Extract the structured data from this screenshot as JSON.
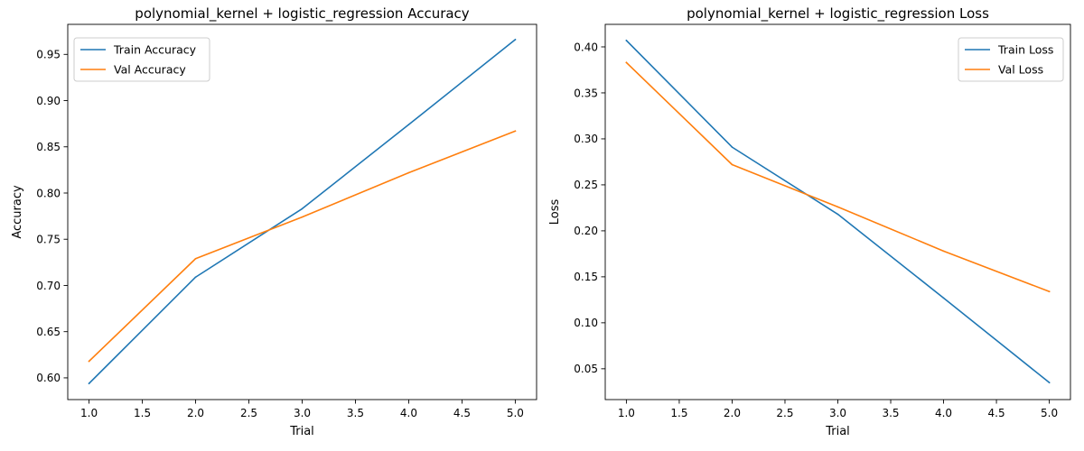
{
  "chart_data": [
    {
      "type": "line",
      "title": "polynomial_kernel + logistic_regression Accuracy",
      "xlabel": "Trial",
      "ylabel": "Accuracy",
      "x": [
        1,
        2,
        3,
        4,
        5
      ],
      "xlim": [
        0.8,
        5.2
      ],
      "ylim": [
        0.5765,
        0.9825
      ],
      "xticks": [
        1.0,
        1.5,
        2.0,
        2.5,
        3.0,
        3.5,
        4.0,
        4.5,
        5.0
      ],
      "xtick_labels": [
        "1.0",
        "1.5",
        "2.0",
        "2.5",
        "3.0",
        "3.5",
        "4.0",
        "4.5",
        "5.0"
      ],
      "yticks": [
        0.6,
        0.65,
        0.7,
        0.75,
        0.8,
        0.85,
        0.9,
        0.95
      ],
      "ytick_labels": [
        "0.60",
        "0.65",
        "0.70",
        "0.75",
        "0.80",
        "0.85",
        "0.90",
        "0.95"
      ],
      "grid": false,
      "legend_position": "top-left",
      "series": [
        {
          "name": "Train Accuracy",
          "color": "#1f77b4",
          "values": [
            0.594,
            0.709,
            0.783,
            0.874,
            0.966
          ]
        },
        {
          "name": "Val Accuracy",
          "color": "#ff7f0e",
          "values": [
            0.618,
            0.729,
            0.774,
            0.822,
            0.867
          ]
        }
      ]
    },
    {
      "type": "line",
      "title": "polynomial_kernel + logistic_regression Loss",
      "xlabel": "Trial",
      "ylabel": "Loss",
      "x": [
        1,
        2,
        3,
        4,
        5
      ],
      "xlim": [
        0.8,
        5.2
      ],
      "ylim": [
        0.0165,
        0.4245
      ],
      "xticks": [
        1.0,
        1.5,
        2.0,
        2.5,
        3.0,
        3.5,
        4.0,
        4.5,
        5.0
      ],
      "xtick_labels": [
        "1.0",
        "1.5",
        "2.0",
        "2.5",
        "3.0",
        "3.5",
        "4.0",
        "4.5",
        "5.0"
      ],
      "yticks": [
        0.05,
        0.1,
        0.15,
        0.2,
        0.25,
        0.3,
        0.35,
        0.4
      ],
      "ytick_labels": [
        "0.05",
        "0.10",
        "0.15",
        "0.20",
        "0.25",
        "0.30",
        "0.35",
        "0.40"
      ],
      "grid": false,
      "legend_position": "top-right",
      "series": [
        {
          "name": "Train Loss",
          "color": "#1f77b4",
          "values": [
            0.407,
            0.291,
            0.218,
            0.127,
            0.035
          ]
        },
        {
          "name": "Val Loss",
          "color": "#ff7f0e",
          "values": [
            0.383,
            0.272,
            0.226,
            0.178,
            0.134
          ]
        }
      ]
    }
  ]
}
